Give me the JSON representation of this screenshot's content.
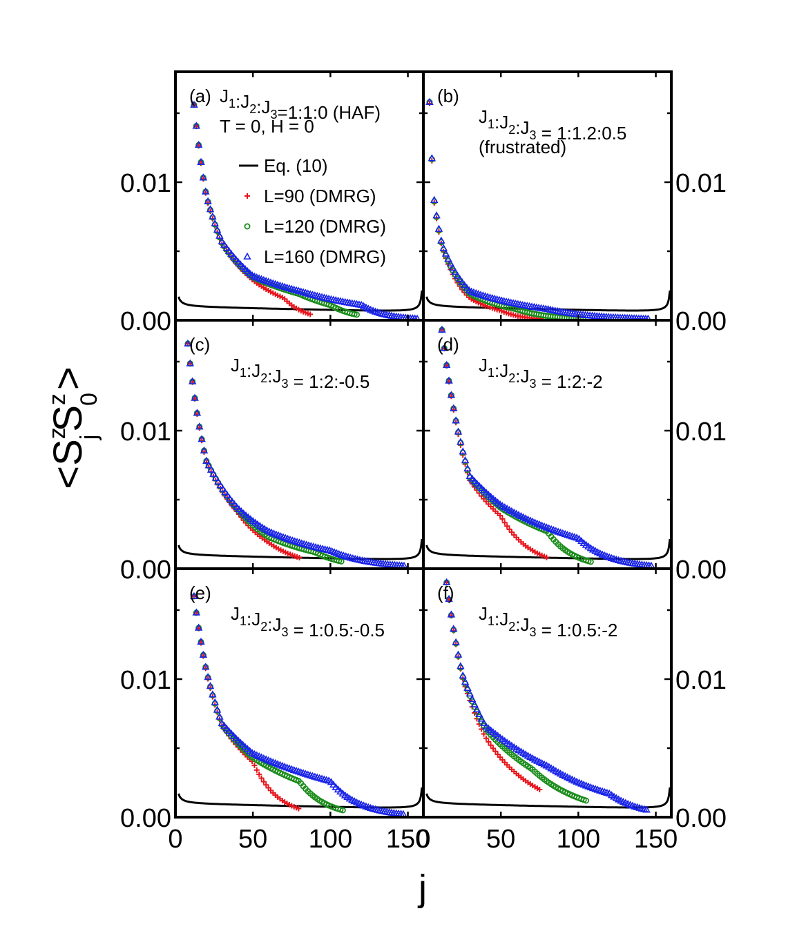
{
  "chart_data": {
    "type": "scatter",
    "ylabel": "<SzjSz0>",
    "ylabel_parts": {
      "open": "<",
      "s1": "S",
      "sup1": "z",
      "sub1": "j",
      "s2": "S",
      "sup2": "z",
      "sub2": "0",
      "close": ">"
    },
    "xlabel": "j",
    "xlim": [
      0,
      160
    ],
    "ylim": [
      0,
      0.018
    ],
    "x_ticks": [
      0,
      50,
      100,
      150
    ],
    "y_ticks": [
      0.0,
      0.01
    ],
    "y_tick_labels": [
      "0.00",
      "0.01"
    ],
    "series_styles": [
      {
        "key": "eq",
        "label": "Eq. (10)",
        "color": "#000000",
        "marker": "line"
      },
      {
        "key": "l90",
        "label": "L=90   (DMRG)",
        "color": "#e8141c",
        "marker": "plus"
      },
      {
        "key": "l120",
        "label": "L=120 (DMRG)",
        "color": "#1a8c1a",
        "marker": "circle"
      },
      {
        "key": "l160",
        "label": "L=160 (DMRG)",
        "color": "#1a24e8",
        "marker": "triangle"
      }
    ],
    "panels": [
      {
        "id": "a",
        "label": "(a)",
        "row": 0,
        "col": 0,
        "text_lines": [
          "J1:J2:J3=1:1:0 (HAF)",
          "T = 0, H = 0"
        ],
        "eq_amp": 0.00015,
        "series": [
          {
            "key": "l90",
            "x_range": [
              12,
              88
            ],
            "values_at": {
              "12": 0.0156,
              "20": 0.0089,
              "30": 0.0055,
              "50": 0.0029,
              "70": 0.0016,
              "88": 0.0004
            }
          },
          {
            "key": "l120",
            "x_range": [
              12,
              117
            ],
            "values_at": {
              "12": 0.0156,
              "20": 0.009,
              "30": 0.0056,
              "50": 0.0031,
              "80": 0.0019,
              "100": 0.0011,
              "117": 0.0004
            }
          },
          {
            "key": "l160",
            "x_range": [
              12,
              157
            ],
            "values_at": {
              "12": 0.0156,
              "20": 0.009,
              "30": 0.0057,
              "50": 0.0032,
              "80": 0.0021,
              "120": 0.0011,
              "157": 0.0001
            }
          }
        ]
      },
      {
        "id": "b",
        "label": "(b)",
        "row": 0,
        "col": 1,
        "text_lines": [
          "J1:J2:J3 = 1:1.2:0.5",
          "(frustrated)"
        ],
        "eq_amp": 0.00015,
        "series": [
          {
            "key": "l90",
            "x_range": [
              4,
              76
            ],
            "values_at": {
              "4": 0.0157,
              "7": 0.0085,
              "12": 0.0053,
              "30": 0.0016,
              "50": 0.0007,
              "76": 0.0001
            }
          },
          {
            "key": "l120",
            "x_range": [
              4,
              104
            ],
            "values_at": {
              "4": 0.0158,
              "7": 0.0086,
              "12": 0.0054,
              "30": 0.0019,
              "60": 0.0008,
              "104": 0.0001
            }
          },
          {
            "key": "l160",
            "x_range": [
              4,
              145
            ],
            "values_at": {
              "4": 0.0158,
              "7": 0.0087,
              "12": 0.0055,
              "30": 0.0021,
              "80": 0.0008,
              "145": 0.0001
            }
          }
        ]
      },
      {
        "id": "c",
        "label": "(c)",
        "row": 1,
        "col": 0,
        "text_lines": [
          "J1:J2:J3 = 1:2:-0.5"
        ],
        "eq_amp": 0.00015,
        "series": [
          {
            "key": "l90",
            "x_range": [
              8,
              80
            ],
            "values_at": {
              "8": 0.0163,
              "20": 0.0077,
              "40": 0.0041,
              "60": 0.0019,
              "80": 0.0008
            }
          },
          {
            "key": "l120",
            "x_range": [
              8,
              108
            ],
            "values_at": {
              "8": 0.0163,
              "20": 0.0078,
              "40": 0.0043,
              "60": 0.0023,
              "90": 0.0012,
              "108": 0.0005
            }
          },
          {
            "key": "l160",
            "x_range": [
              8,
              148
            ],
            "values_at": {
              "8": 0.0163,
              "20": 0.0078,
              "40": 0.0044,
              "60": 0.0027,
              "100": 0.0013,
              "148": 0.0002
            }
          }
        ]
      },
      {
        "id": "d",
        "label": "(d)",
        "row": 1,
        "col": 1,
        "text_lines": [
          "J1:J2:J3 = 1:2:-2"
        ],
        "eq_amp": 0.00015,
        "series": [
          {
            "key": "l90",
            "x_range": [
              12,
              80
            ],
            "values_at": {
              "12": 0.0173,
              "20": 0.0112,
              "30": 0.0064,
              "50": 0.0038,
              "80": 0.0008
            }
          },
          {
            "key": "l120",
            "x_range": [
              12,
              108
            ],
            "values_at": {
              "12": 0.0173,
              "20": 0.0113,
              "30": 0.0066,
              "50": 0.0044,
              "80": 0.0027,
              "108": 0.0005
            }
          },
          {
            "key": "l160",
            "x_range": [
              12,
              148
            ],
            "values_at": {
              "12": 0.0173,
              "20": 0.0113,
              "30": 0.0067,
              "50": 0.0046,
              "100": 0.0022,
              "148": 0.0002
            }
          }
        ]
      },
      {
        "id": "e",
        "label": "(e)",
        "row": 2,
        "col": 0,
        "text_lines": [
          "J1:J2:J3 = 1:0.5:-0.5"
        ],
        "eq_amp": 0.00015,
        "series": [
          {
            "key": "l90",
            "x_range": [
              12,
              80
            ],
            "values_at": {
              "12": 0.016,
              "20": 0.0105,
              "30": 0.0066,
              "50": 0.004,
              "80": 0.0006
            }
          },
          {
            "key": "l120",
            "x_range": [
              12,
              108
            ],
            "values_at": {
              "12": 0.016,
              "20": 0.0106,
              "30": 0.0067,
              "50": 0.0043,
              "80": 0.0026,
              "108": 0.0005
            }
          },
          {
            "key": "l160",
            "x_range": [
              12,
              148
            ],
            "values_at": {
              "12": 0.016,
              "20": 0.0106,
              "30": 0.0068,
              "50": 0.0046,
              "100": 0.0026,
              "148": 0.0002
            }
          }
        ]
      },
      {
        "id": "f",
        "label": "(f)",
        "row": 2,
        "col": 1,
        "text_lines": [
          "J1:J2:J3 = 1:0.5:-2"
        ],
        "eq_amp": 0.00015,
        "series": [
          {
            "key": "l90",
            "x_range": [
              15,
              75
            ],
            "values_at": {
              "15": 0.017,
              "25": 0.0102,
              "40": 0.0058,
              "75": 0.002
            }
          },
          {
            "key": "l120",
            "x_range": [
              15,
              105
            ],
            "values_at": {
              "15": 0.017,
              "25": 0.0103,
              "40": 0.0064,
              "70": 0.0035,
              "105": 0.0012
            }
          },
          {
            "key": "l160",
            "x_range": [
              15,
              145
            ],
            "values_at": {
              "15": 0.017,
              "25": 0.0104,
              "40": 0.0066,
              "80": 0.0037,
              "120": 0.0017,
              "145": 0.0005
            }
          }
        ]
      }
    ]
  }
}
